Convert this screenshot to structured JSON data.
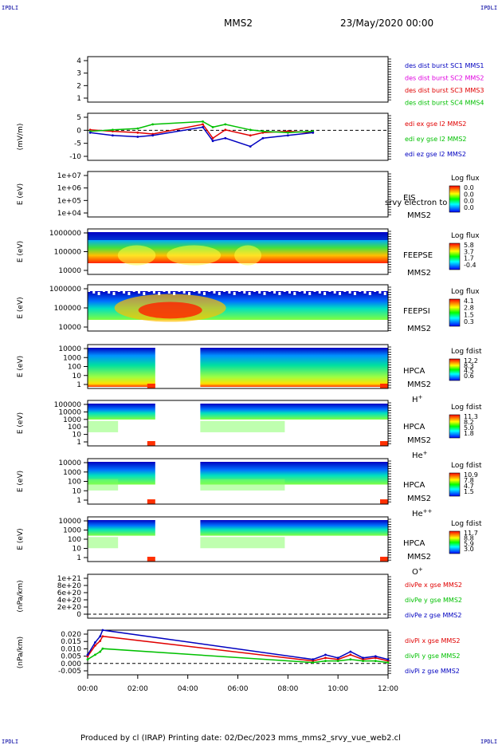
{
  "corners": {
    "tl": "IPDLI",
    "tr": "IPDLI",
    "bl": "IPDLI",
    "br": "IPDLI"
  },
  "header": {
    "spacecraft": "MMS2",
    "date": "23/May/2020 00:00"
  },
  "footer": {
    "text": "Produced by cl (IRAP)   Printing date: 02/Dec/2023   mms_mms2_srvy_vue_web2.cl"
  },
  "x_ticks": [
    "00:00",
    "02:00",
    "04:00",
    "06:00",
    "08:00",
    "10:00",
    "12:00"
  ],
  "colors": {
    "red": "#e00000",
    "magenta": "#e000e0",
    "green": "#00c000",
    "blue": "#0000c0"
  },
  "panels": [
    {
      "id": "des",
      "ylabel": "",
      "ticks": [
        "4",
        "3",
        "2",
        "1"
      ],
      "legend": [
        "des dist burst SC1 MMS1",
        "des dist burst SC2 MMS2",
        "des dist burst SC3 MMS3",
        "des dist burst SC4 MMS4"
      ]
    },
    {
      "id": "edi",
      "ylabel": "(mV/m)",
      "ticks": [
        "5",
        "0",
        "-5",
        "-10"
      ],
      "legend": [
        "edi ex gse l2 MMS2",
        "edi ey gse l2 MMS2",
        "edi ez gse l2 MMS2"
      ]
    },
    {
      "id": "eis",
      "ylabel": "E (eV)",
      "ticks": [
        "1e+07",
        "1e+06",
        "1e+05",
        "1e+04"
      ],
      "name": "EIS",
      "overlay": "srvy electron to",
      "sc": "MMS2",
      "cb_title": "Log flux",
      "cb_vals": [
        "0.0",
        "0.0",
        "0.0",
        "0.0"
      ]
    },
    {
      "id": "feepse",
      "ylabel": "E (eV)",
      "ticks": [
        "1000000",
        "100000",
        "10000"
      ],
      "name": "FEEPSE",
      "sc": "MMS2",
      "cb_title": "Log flux",
      "cb_vals": [
        "5.8",
        "3.7",
        "1.7",
        "-0.4"
      ]
    },
    {
      "id": "feepsi",
      "ylabel": "E (eV)",
      "ticks": [
        "1000000",
        "100000",
        "10000"
      ],
      "name": "FEEPSI",
      "sc": "MMS2",
      "cb_title": "Log flux",
      "cb_vals": [
        "4.1",
        "2.8",
        "1.5",
        "0.3"
      ]
    },
    {
      "id": "hpca_h",
      "ylabel": "E (eV)",
      "ticks": [
        "10000",
        "1000",
        "100",
        "10",
        "1"
      ],
      "name": "HPCA",
      "sc": "MMS2",
      "species": "H",
      "charge": "+",
      "cb_title": "Log fdist",
      "cb_vals": [
        "12.2",
        "8.3",
        "4.5",
        "0.6"
      ]
    },
    {
      "id": "hpca_he",
      "ylabel": "E (eV)",
      "ticks": [
        "100000",
        "10000",
        "1000",
        "100",
        "10",
        "1"
      ],
      "name": "HPCA",
      "sc": "MMS2",
      "species": "He",
      "charge": "+",
      "cb_title": "Log fdist",
      "cb_vals": [
        "11.3",
        "8.2",
        "5.0",
        "1.8"
      ]
    },
    {
      "id": "hpca_hepp",
      "ylabel": "E (eV)",
      "ticks": [
        "10000",
        "1000",
        "100",
        "10",
        "1"
      ],
      "name": "HPCA",
      "sc": "MMS2",
      "species": "He",
      "charge": "++",
      "cb_title": "Log fdist",
      "cb_vals": [
        "10.9",
        "7.8",
        "4.7",
        "1.5"
      ]
    },
    {
      "id": "hpca_o",
      "ylabel": "E (eV)",
      "ticks": [
        "10000",
        "1000",
        "100",
        "10",
        "1"
      ],
      "name": "HPCA",
      "sc": "MMS2",
      "species": "O",
      "charge": "+",
      "cb_title": "Log fdist",
      "cb_vals": [
        "11.7",
        "8.8",
        "5.9",
        "3.0"
      ]
    },
    {
      "id": "divpe",
      "ylabel": "(nPa/km)",
      "ticks": [
        "1e+21",
        "8e+20",
        "6e+20",
        "4e+20",
        "2e+20",
        "0"
      ],
      "legend": [
        "divPe x gse MMS2",
        "divPe y gse MMS2",
        "divPe z gse MMS2"
      ]
    },
    {
      "id": "divpi",
      "ylabel": "(nPa/km)",
      "ticks": [
        "0.020",
        "0.015",
        "0.010",
        "0.005",
        "0.000",
        "-0.005"
      ],
      "legend": [
        "divPi x gse MMS2",
        "divPi y gse MMS2",
        "divPi z gse MMS2"
      ]
    }
  ],
  "chart_data": {
    "type": "line",
    "x_range_hours": [
      0,
      12
    ],
    "series": [
      {
        "name": "edi ex gse l2 MMS2",
        "panel": "edi",
        "x": [
          0.1,
          1,
          2,
          2.6,
          4.6,
          5,
          5.5,
          6.5,
          7,
          8,
          9
        ],
        "values": [
          1,
          0.5,
          0,
          -0.5,
          3,
          -2,
          1,
          -1,
          0,
          0.5,
          0
        ]
      },
      {
        "name": "edi ey gse l2 MMS2",
        "panel": "edi",
        "x": [
          0.1,
          1,
          2,
          2.6,
          4.6,
          5,
          5.5,
          6.5,
          7,
          8,
          9
        ],
        "values": [
          0.5,
          1,
          1.5,
          3,
          4,
          2,
          3,
          1,
          0.5,
          0,
          0.5
        ]
      },
      {
        "name": "edi ez gse l2 MMS2",
        "panel": "edi",
        "x": [
          0.1,
          1,
          2,
          2.6,
          4.6,
          5,
          5.5,
          6.5,
          7,
          8,
          9
        ],
        "values": [
          0,
          -1,
          -1.5,
          -1,
          2,
          -3,
          -2,
          -5,
          -2,
          -1,
          0
        ]
      },
      {
        "name": "divPi x gse MMS2",
        "panel": "divpi",
        "x": [
          0,
          0.3,
          0.5,
          0.6,
          9,
          9.5,
          10,
          10.5,
          11,
          11.5,
          12
        ],
        "values": [
          0.005,
          0.012,
          0.015,
          0.018,
          0.002,
          0.004,
          0.003,
          0.006,
          0.003,
          0.004,
          0.002
        ]
      },
      {
        "name": "divPi y gse MMS2",
        "panel": "divpi",
        "x": [
          0,
          0.3,
          0.5,
          0.6,
          9,
          9.5,
          10,
          10.5,
          11,
          11.5,
          12
        ],
        "values": [
          0.003,
          0.006,
          0.008,
          0.01,
          0.001,
          0.002,
          0.002,
          0.003,
          0.002,
          0.002,
          0.001
        ]
      },
      {
        "name": "divPi z gse MMS2",
        "panel": "divpi",
        "x": [
          0,
          0.3,
          0.5,
          0.6,
          9,
          9.5,
          10,
          10.5,
          11,
          11.5,
          12
        ],
        "values": [
          0.006,
          0.014,
          0.018,
          0.022,
          0.003,
          0.006,
          0.004,
          0.008,
          0.004,
          0.005,
          0.003
        ]
      }
    ]
  }
}
